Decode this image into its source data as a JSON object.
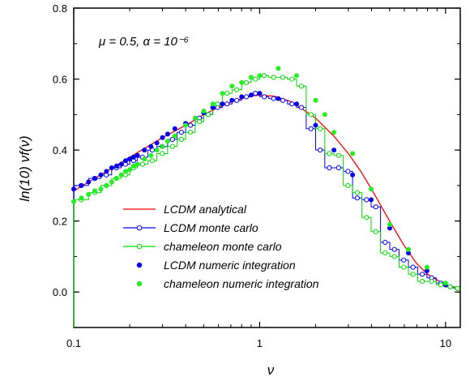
{
  "chart_data": {
    "type": "line",
    "xlabel": "ν",
    "ylabel": "ln(10) νf(ν)",
    "annotation": "μ = 0.5, α = 10⁻⁶",
    "xscale": "log",
    "xlim": [
      0.1,
      12
    ],
    "ylim": [
      -0.1,
      0.8
    ],
    "xticks": [
      {
        "v": 0.1,
        "label": "0.1"
      },
      {
        "v": 1,
        "label": "1"
      },
      {
        "v": 10,
        "label": "10"
      }
    ],
    "yticks": [
      {
        "v": 0.0,
        "label": "0.0"
      },
      {
        "v": 0.2,
        "label": "0.2"
      },
      {
        "v": 0.4,
        "label": "0.4"
      },
      {
        "v": 0.6,
        "label": "0.6"
      },
      {
        "v": 0.8,
        "label": "0.8"
      }
    ],
    "legend_position": "lower-left",
    "series": [
      {
        "name": "LCDM analytical",
        "style": "curve",
        "color": "#ff0000",
        "x": [
          0.1,
          0.15,
          0.2,
          0.3,
          0.4,
          0.5,
          0.6,
          0.7,
          0.8,
          0.9,
          1.0,
          1.2,
          1.5,
          2.0,
          2.5,
          3.0,
          3.5,
          4.0,
          5.0,
          6.0,
          7.0,
          8.0,
          10.0,
          12.0
        ],
        "y": [
          0.285,
          0.34,
          0.38,
          0.435,
          0.47,
          0.5,
          0.52,
          0.535,
          0.545,
          0.552,
          0.555,
          0.552,
          0.535,
          0.49,
          0.44,
          0.39,
          0.34,
          0.29,
          0.2,
          0.13,
          0.08,
          0.05,
          0.02,
          0.005
        ]
      },
      {
        "name": "LCDM monte carlo",
        "style": "step-open",
        "color": "#0000ff",
        "x": [
          0.1,
          0.12,
          0.14,
          0.16,
          0.18,
          0.2,
          0.22,
          0.25,
          0.28,
          0.32,
          0.36,
          0.4,
          0.45,
          0.5,
          0.56,
          0.63,
          0.71,
          0.8,
          0.9,
          1.0,
          1.12,
          1.26,
          1.41,
          1.58,
          1.78,
          2.0,
          2.24,
          2.51,
          2.82,
          3.16,
          3.55,
          3.98,
          4.47,
          5.01,
          5.62,
          6.31,
          7.08,
          7.94,
          8.91,
          10.0,
          11.2
        ],
        "y": [
          0.3,
          0.32,
          0.33,
          0.35,
          0.36,
          0.37,
          0.38,
          0.4,
          0.41,
          0.43,
          0.45,
          0.47,
          0.49,
          0.5,
          0.52,
          0.53,
          0.54,
          0.55,
          0.56,
          0.55,
          0.545,
          0.54,
          0.53,
          0.52,
          0.46,
          0.4,
          0.35,
          0.35,
          0.34,
          0.265,
          0.26,
          0.24,
          0.14,
          0.12,
          0.09,
          0.07,
          0.05,
          0.04,
          0.025,
          0.015,
          0.01
        ]
      },
      {
        "name": "chameleon monte carlo",
        "style": "step-open",
        "color": "#00dd00",
        "x": [
          0.1,
          0.12,
          0.14,
          0.16,
          0.18,
          0.2,
          0.22,
          0.25,
          0.28,
          0.32,
          0.36,
          0.4,
          0.45,
          0.5,
          0.56,
          0.63,
          0.71,
          0.8,
          0.9,
          1.0,
          1.12,
          1.26,
          1.41,
          1.58,
          1.78,
          2.0,
          2.24,
          2.51,
          2.82,
          3.16,
          3.55,
          3.98,
          4.47,
          5.01,
          5.62,
          6.31,
          7.08,
          7.94,
          8.91,
          10.0,
          11.2
        ],
        "y": [
          0.26,
          0.28,
          0.3,
          0.32,
          0.33,
          0.35,
          0.36,
          0.37,
          0.39,
          0.41,
          0.43,
          0.45,
          0.48,
          0.5,
          0.53,
          0.56,
          0.57,
          0.59,
          0.6,
          0.61,
          0.605,
          0.605,
          0.6,
          0.58,
          0.5,
          0.46,
          0.39,
          0.385,
          0.3,
          0.28,
          0.21,
          0.17,
          0.11,
          0.1,
          0.07,
          0.05,
          0.03,
          0.03,
          0.02,
          0.015,
          0.01
        ]
      },
      {
        "name": "LCDM numeric integration",
        "style": "dots",
        "color": "#0000ee",
        "x": [
          0.1,
          0.11,
          0.12,
          0.13,
          0.14,
          0.15,
          0.16,
          0.17,
          0.18,
          0.19,
          0.2,
          0.21,
          0.22,
          0.24,
          0.26,
          0.28,
          0.3,
          0.32,
          0.35,
          0.4,
          0.45,
          0.5,
          0.56,
          0.63,
          0.71,
          0.8,
          0.9,
          1.0,
          1.26,
          1.58,
          2.0,
          2.51,
          3.16,
          3.98,
          5.01,
          6.31,
          7.94,
          10.0
        ],
        "y": [
          0.29,
          0.3,
          0.31,
          0.32,
          0.33,
          0.34,
          0.35,
          0.355,
          0.36,
          0.37,
          0.375,
          0.38,
          0.385,
          0.4,
          0.41,
          0.42,
          0.435,
          0.445,
          0.46,
          0.475,
          0.49,
          0.505,
          0.52,
          0.53,
          0.54,
          0.55,
          0.555,
          0.56,
          0.545,
          0.53,
          0.47,
          0.4,
          0.33,
          0.26,
          0.18,
          0.11,
          0.06,
          0.02
        ]
      },
      {
        "name": "chameleon numeric integration",
        "style": "dots",
        "color": "#22ee22",
        "x": [
          0.1,
          0.11,
          0.12,
          0.13,
          0.14,
          0.15,
          0.16,
          0.17,
          0.18,
          0.19,
          0.2,
          0.21,
          0.22,
          0.24,
          0.26,
          0.28,
          0.3,
          0.32,
          0.35,
          0.4,
          0.45,
          0.5,
          0.56,
          0.63,
          0.71,
          0.8,
          0.9,
          1.0,
          1.26,
          1.58,
          2.0,
          2.24,
          2.51,
          3.16,
          3.98,
          5.01,
          6.31,
          7.94,
          10.0
        ],
        "y": [
          0.255,
          0.265,
          0.275,
          0.285,
          0.29,
          0.3,
          0.31,
          0.32,
          0.33,
          0.34,
          0.345,
          0.355,
          0.36,
          0.375,
          0.385,
          0.4,
          0.41,
          0.425,
          0.44,
          0.47,
          0.49,
          0.51,
          0.53,
          0.56,
          0.58,
          0.59,
          0.605,
          0.61,
          0.63,
          0.61,
          0.54,
          0.5,
          0.45,
          0.39,
          0.29,
          0.19,
          0.12,
          0.07,
          0.025
        ]
      }
    ]
  }
}
